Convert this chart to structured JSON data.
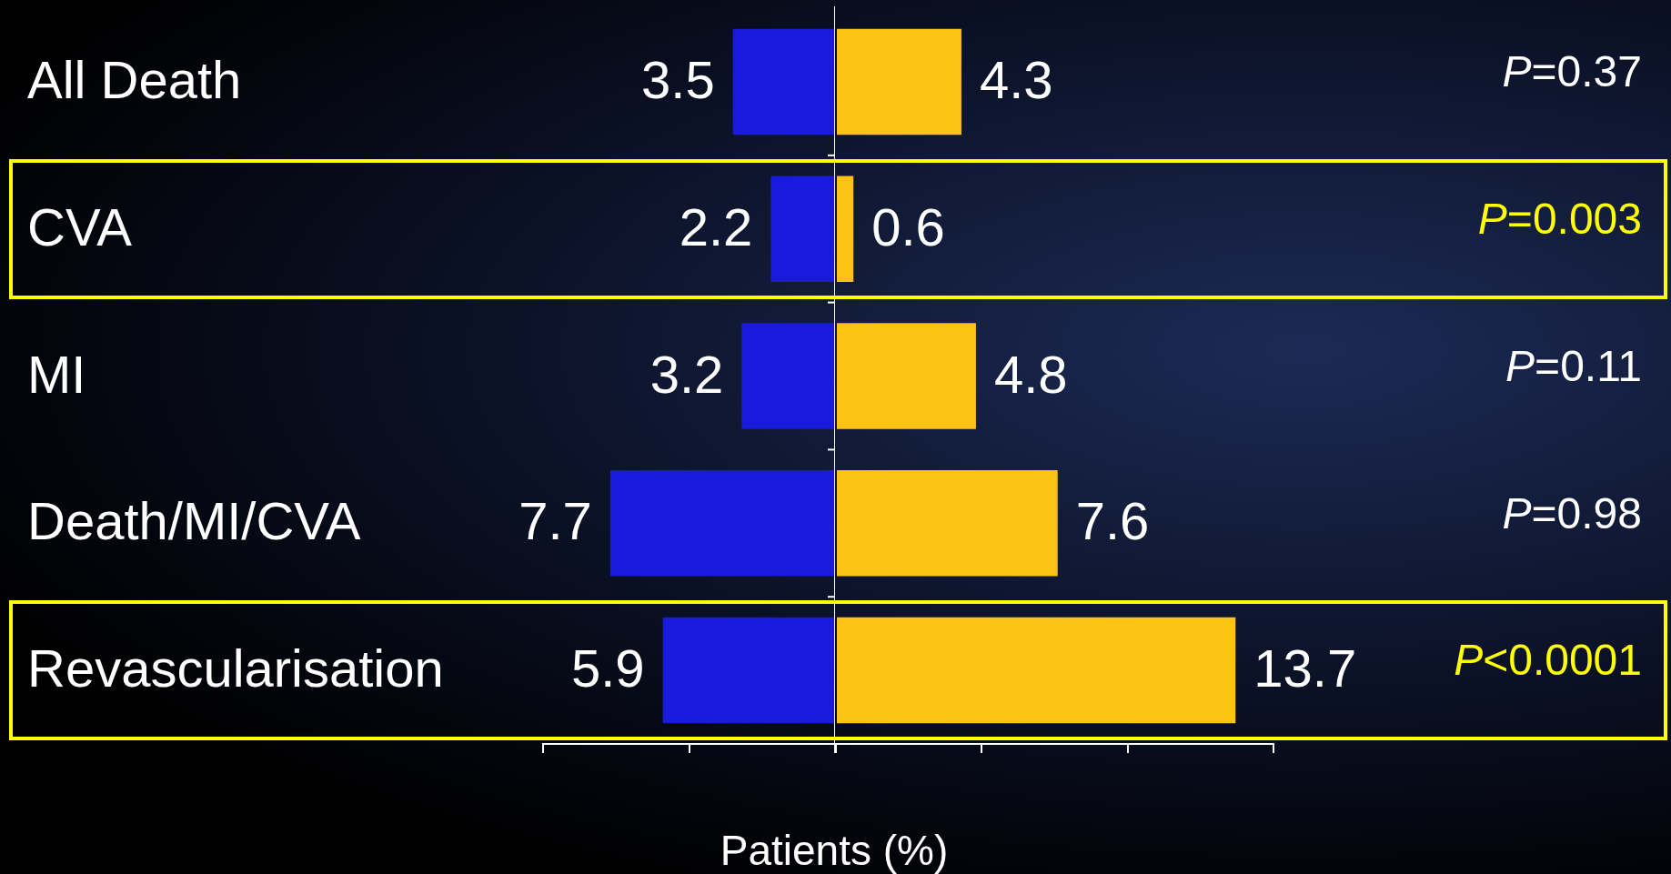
{
  "chart_data": [
    {
      "type": "bar",
      "orientation": "horizontal",
      "xlabel": "Patients (%)",
      "categories": [
        "All Death",
        "CVA",
        "MI",
        "Death/MI/CVA",
        "Revascularisation"
      ],
      "series": [
        {
          "color": "#1a1adc",
          "values": [
            3.5,
            2.2,
            3.2,
            7.7,
            5.9
          ]
        }
      ],
      "xlim": [
        10,
        0
      ],
      "data_labels": true,
      "tick_labels": "y",
      "legend": false
    },
    {
      "type": "bar",
      "orientation": "horizontal",
      "categories": [
        null,
        null,
        null,
        null,
        null
      ],
      "series": [
        {
          "color": "#fcc314",
          "values": [
            4.3,
            0.6,
            4.8,
            7.6,
            13.7
          ]
        }
      ],
      "xlim": [
        0,
        15
      ],
      "data_labels": true,
      "tick_labels": false,
      "legend": false,
      "annotations": [
        "P=0.37",
        "P=0.003",
        "P=0.11",
        "P=0.98",
        "P<0.0001"
      ]
    }
  ]
}
